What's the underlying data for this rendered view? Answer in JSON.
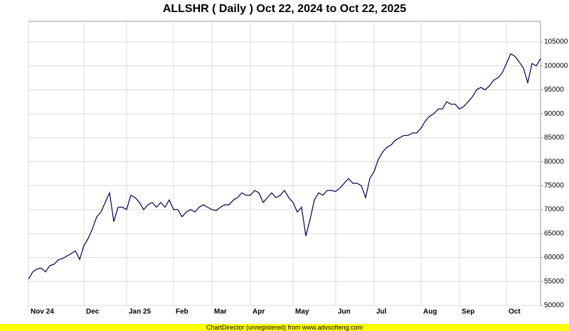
{
  "chart_data": {
    "type": "line",
    "title": "ALLSHR ( Daily ) Oct 22, 2024 to Oct 22, 2025",
    "footer": "ChartDirector (unregistered) from www.advsofteng.com",
    "categories": [
      "Nov 24",
      null,
      null,
      null,
      null,
      null,
      null,
      null,
      null,
      null,
      null,
      null,
      null,
      "Dec",
      null,
      null,
      null,
      null,
      null,
      null,
      null,
      null,
      null,
      "Jan 25",
      null,
      null,
      null,
      null,
      null,
      null,
      null,
      null,
      null,
      null,
      "Feb",
      null,
      null,
      null,
      null,
      null,
      null,
      null,
      null,
      "Mar",
      null,
      null,
      null,
      null,
      null,
      null,
      null,
      null,
      "Apr",
      null,
      null,
      null,
      null,
      null,
      null,
      null,
      null,
      null,
      "May",
      null,
      null,
      null,
      null,
      null,
      null,
      null,
      null,
      null,
      "Jun",
      null,
      null,
      null,
      null,
      null,
      null,
      null,
      null,
      "Jul",
      null,
      null,
      null,
      null,
      null,
      null,
      null,
      null,
      null,
      null,
      "Aug",
      null,
      null,
      null,
      null,
      null,
      null,
      null,
      null,
      "Sep",
      null,
      null,
      null,
      null,
      null,
      null,
      null,
      null,
      null,
      null,
      "Oct",
      null,
      null,
      null,
      null,
      null,
      null,
      null,
      null
    ],
    "values": [
      55500,
      57000,
      57600,
      57800,
      57000,
      58300,
      58600,
      59500,
      59800,
      60300,
      60800,
      61400,
      59600,
      62500,
      64000,
      66000,
      68500,
      69500,
      71500,
      73500,
      67500,
      70500,
      70500,
      70000,
      73000,
      72500,
      71500,
      70000,
      71000,
      71500,
      70500,
      71500,
      70500,
      72000,
      70000,
      70000,
      68500,
      69500,
      70000,
      69500,
      70500,
      71000,
      70500,
      70000,
      69800,
      70500,
      71000,
      71000,
      72000,
      72500,
      73500,
      73000,
      73000,
      74000,
      73500,
      71500,
      72500,
      73500,
      72500,
      73000,
      74000,
      72500,
      71500,
      69500,
      70500,
      64500,
      68000,
      72000,
      73500,
      73000,
      74000,
      74000,
      73800,
      74500,
      75500,
      76500,
      75500,
      75500,
      75000,
      72500,
      76500,
      78000,
      80500,
      82000,
      83000,
      83500,
      84500,
      85000,
      85500,
      85500,
      86000,
      86000,
      87000,
      88500,
      89500,
      90000,
      91000,
      91000,
      92500,
      92000,
      92000,
      91000,
      91500,
      92500,
      93500,
      95000,
      95500,
      95000,
      95800,
      97000,
      97500,
      98500,
      100500,
      102500,
      102000,
      100800,
      99500,
      96500,
      100500,
      100000,
      101500
    ],
    "color": "#000050",
    "ylim": [
      50000,
      109300
    ],
    "yticks": [
      50000,
      55000,
      60000,
      65000,
      70000,
      75000,
      80000,
      85000,
      90000,
      95000,
      100000,
      105000
    ],
    "grid": true
  }
}
